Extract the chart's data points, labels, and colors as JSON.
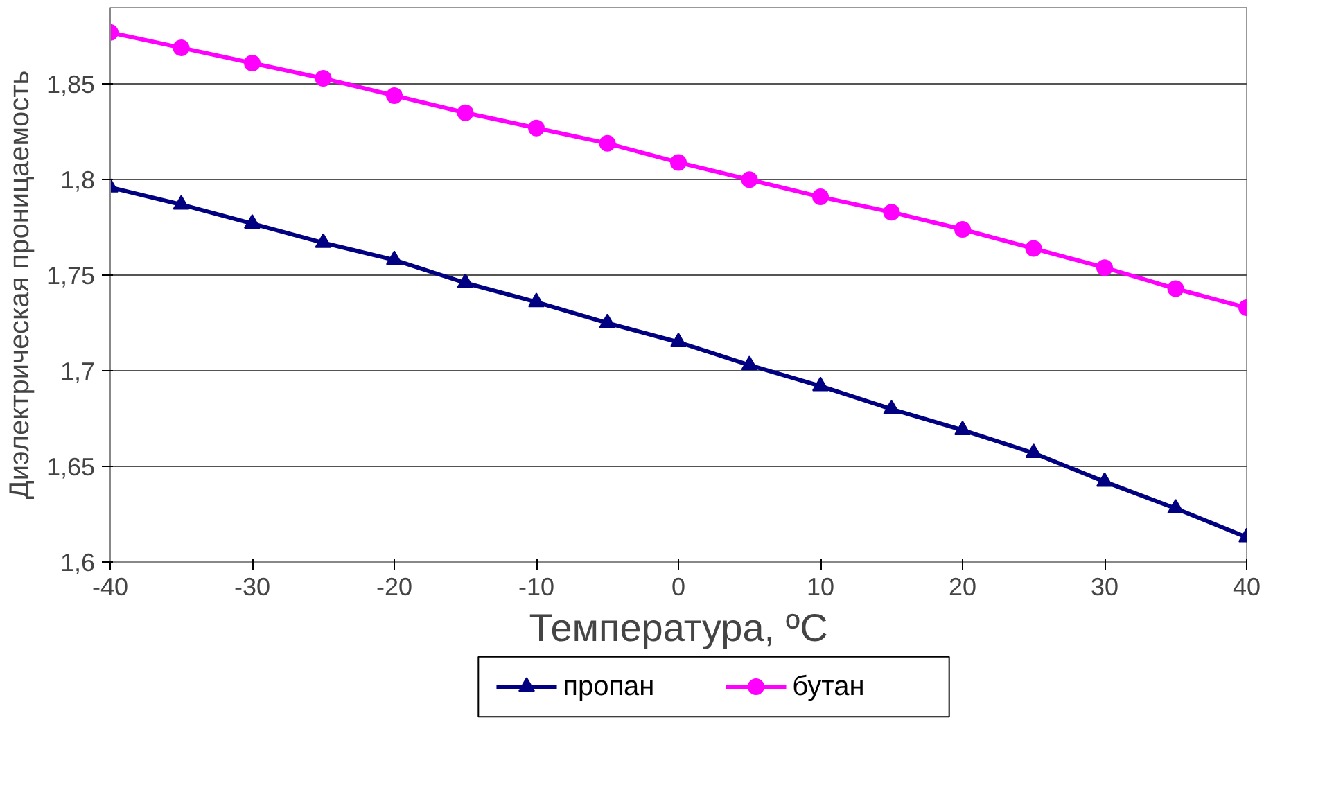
{
  "chart_data": {
    "type": "line",
    "xlabel": "Температура, ºC",
    "ylabel": "Диэлектрическая проницаемость",
    "x": [
      -40,
      -35,
      -30,
      -25,
      -20,
      -15,
      -10,
      -5,
      0,
      5,
      10,
      15,
      20,
      25,
      30,
      35,
      40
    ],
    "series": [
      {
        "name": "пропан",
        "color": "#000080",
        "marker": "triangle",
        "values": [
          1.796,
          1.787,
          1.777,
          1.767,
          1.758,
          1.746,
          1.736,
          1.725,
          1.715,
          1.703,
          1.692,
          1.68,
          1.669,
          1.657,
          1.642,
          1.628,
          1.613
        ]
      },
      {
        "name": "бутан",
        "color": "#ff00ff",
        "marker": "circle",
        "values": [
          1.877,
          1.869,
          1.861,
          1.853,
          1.844,
          1.835,
          1.827,
          1.819,
          1.809,
          1.8,
          1.791,
          1.783,
          1.774,
          1.764,
          1.754,
          1.743,
          1.733
        ]
      }
    ],
    "xlim": [
      -40,
      40
    ],
    "ylim": [
      1.6,
      1.89
    ],
    "xticks": [
      -40,
      -30,
      -20,
      -10,
      0,
      10,
      20,
      30,
      40
    ],
    "yticks": [
      {
        "value": 1.6,
        "label": "1,6"
      },
      {
        "value": 1.65,
        "label": "1,65"
      },
      {
        "value": 1.7,
        "label": "1,7"
      },
      {
        "value": 1.75,
        "label": "1,75"
      },
      {
        "value": 1.8,
        "label": "1,8"
      },
      {
        "value": 1.85,
        "label": "1,85"
      }
    ],
    "grid": "y",
    "legend": "bottom",
    "line_style": "solid"
  }
}
